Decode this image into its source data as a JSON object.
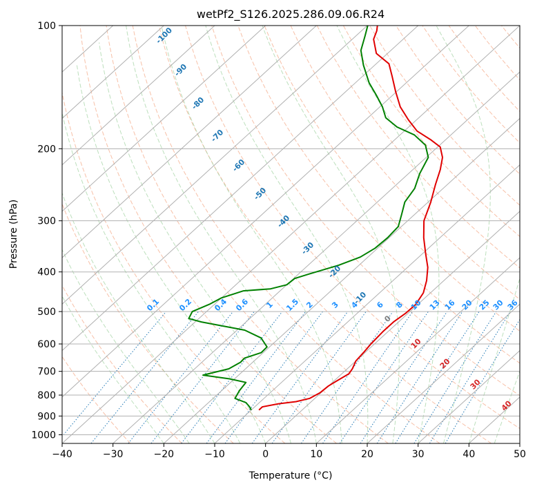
{
  "chart_data": {
    "type": "line",
    "title": "wetPf2_S126.2025.286.09.06.R24",
    "xlabel": "Temperature (°C)",
    "ylabel": "Pressure (hPa)",
    "xlim": [
      -40,
      50
    ],
    "ylim": [
      1050,
      100
    ],
    "y_scale": "log",
    "x_ticks": [
      -40,
      -30,
      -20,
      -10,
      0,
      10,
      20,
      30,
      40,
      50
    ],
    "y_ticks": [
      100,
      200,
      300,
      400,
      500,
      600,
      700,
      800,
      900,
      1000
    ],
    "grid": true,
    "skew": 45,
    "series": [
      {
        "color": "#e00000",
        "points": [
          [
            -8.5,
            870
          ],
          [
            -8.5,
            855
          ],
          [
            -6,
            840
          ],
          [
            -3,
            830
          ],
          [
            -1,
            815
          ],
          [
            -0.2,
            790
          ],
          [
            0,
            760
          ],
          [
            0.5,
            740
          ],
          [
            1.4,
            710
          ],
          [
            1.0,
            690
          ],
          [
            0,
            660
          ],
          [
            -0.3,
            630
          ],
          [
            -0.7,
            600
          ],
          [
            -1.0,
            560
          ],
          [
            -1.0,
            530
          ],
          [
            -0.5,
            505
          ],
          [
            -0.4,
            480
          ],
          [
            -1.4,
            450
          ],
          [
            -3.4,
            420
          ],
          [
            -6,
            390
          ],
          [
            -9.5,
            360
          ],
          [
            -13.2,
            330
          ],
          [
            -16.8,
            300
          ],
          [
            -19.5,
            270
          ],
          [
            -22.3,
            245
          ],
          [
            -24.6,
            225
          ],
          [
            -26.8,
            210
          ],
          [
            -29.5,
            198
          ],
          [
            -33,
            190
          ],
          [
            -37.5,
            181
          ],
          [
            -41.6,
            170
          ],
          [
            -46,
            158
          ],
          [
            -50.2,
            145
          ],
          [
            -54.2,
            133
          ],
          [
            -57.5,
            124
          ],
          [
            -62.2,
            117
          ],
          [
            -65.8,
            108
          ],
          [
            -67,
            103
          ],
          [
            -68,
            100
          ]
        ]
      },
      {
        "color": "#008000",
        "points": [
          [
            -10,
            870
          ],
          [
            -11,
            855
          ],
          [
            -12.6,
            835
          ],
          [
            -15.7,
            815
          ],
          [
            -16.5,
            780
          ],
          [
            -17,
            745
          ],
          [
            -21,
            730
          ],
          [
            -27,
            715
          ],
          [
            -23.3,
            690
          ],
          [
            -22.4,
            665
          ],
          [
            -22.5,
            650
          ],
          [
            -20.4,
            630
          ],
          [
            -20.5,
            610
          ],
          [
            -23.6,
            580
          ],
          [
            -28.5,
            555
          ],
          [
            -38.8,
            530
          ],
          [
            -42,
            520
          ],
          [
            -42.8,
            500
          ],
          [
            -41,
            480
          ],
          [
            -40,
            463
          ],
          [
            -37.2,
            445
          ],
          [
            -32.3,
            440
          ],
          [
            -30,
            430
          ],
          [
            -29.8,
            415
          ],
          [
            -28,
            405
          ],
          [
            -24,
            385
          ],
          [
            -21.5,
            368
          ],
          [
            -20.5,
            350
          ],
          [
            -20.3,
            330
          ],
          [
            -20.6,
            310
          ],
          [
            -22.5,
            290
          ],
          [
            -24.6,
            270
          ],
          [
            -25.6,
            250
          ],
          [
            -27.8,
            230
          ],
          [
            -29.6,
            210
          ],
          [
            -32.8,
            196
          ],
          [
            -37.2,
            185
          ],
          [
            -42.3,
            177
          ],
          [
            -46.5,
            168
          ],
          [
            -49.5,
            158
          ],
          [
            -53.2,
            148
          ],
          [
            -57.3,
            138
          ],
          [
            -62.2,
            125
          ],
          [
            -65.9,
            115
          ],
          [
            -68.2,
            106
          ],
          [
            -69.9,
            100
          ]
        ]
      }
    ],
    "dry_adiabat_labels": [
      "-100",
      "-90",
      "-80",
      "-70",
      "-60",
      "-50",
      "-40",
      "-30",
      "-20",
      "-10"
    ],
    "moist_adiabat_labels": [
      "0",
      "10",
      "20",
      "30",
      "40"
    ],
    "mixing_ratio_labels": [
      "0.1",
      "0.2",
      "0.4",
      "0.6",
      "1",
      "1.5",
      "2",
      "3",
      "4",
      "6",
      "8",
      "10",
      "13",
      "16",
      "20",
      "25",
      "30",
      "36"
    ],
    "mixing_ratio_values": [
      0.1,
      0.2,
      0.4,
      0.6,
      1,
      1.5,
      2,
      3,
      4,
      6,
      8,
      10,
      13,
      16,
      20,
      25,
      30,
      36
    ],
    "colors": {
      "isotherm": "#b0b0b0",
      "isobar": "#b0b0b0",
      "dry_adiabat": "#f4a582",
      "moist_adiabat": "#9fd29f",
      "mixing_ratio": "#1f77b4",
      "dry_adiabat_label": "#1f77b4",
      "moist_adiabat_label": "#d62728",
      "moist_zero_label": "#808080",
      "mixing_ratio_label": "#1e90ff"
    }
  }
}
